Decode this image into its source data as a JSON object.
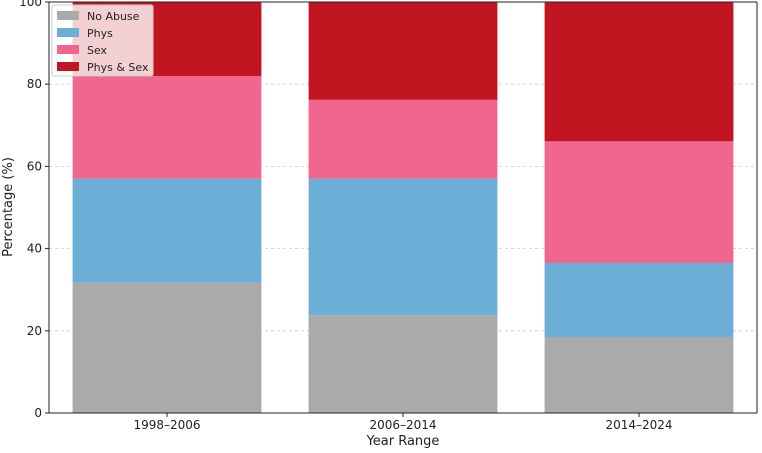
{
  "chart_data": {
    "type": "bar",
    "stacked": true,
    "title": "",
    "xlabel": "Year Range",
    "ylabel": "Percentage (%)",
    "ylim": [
      0,
      100
    ],
    "yticks": [
      "0",
      "20",
      "40",
      "60",
      "80",
      "100"
    ],
    "grid": true,
    "legend_position": "top-left",
    "categories": [
      "1998–2006",
      "2006–2014",
      "2014–2024"
    ],
    "series": [
      {
        "name": "No Abuse",
        "color": "#aaaaaa",
        "values": [
          31.7,
          23.8,
          18.5
        ]
      },
      {
        "name": "Phys",
        "color": "#6baed6",
        "values": [
          25.3,
          33.2,
          18.0
        ]
      },
      {
        "name": "Sex",
        "color": "#f0668f",
        "values": [
          25.0,
          19.2,
          29.6
        ]
      },
      {
        "name": "Phys & Sex",
        "color": "#c11522",
        "values": [
          18.0,
          23.8,
          33.9
        ]
      }
    ]
  }
}
